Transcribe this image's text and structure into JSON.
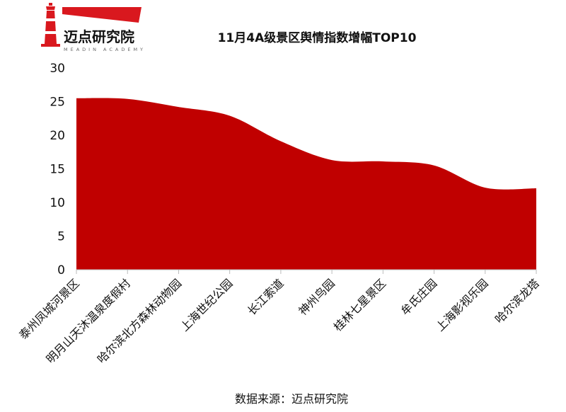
{
  "brand": {
    "name": "迈点研究院",
    "tagline": "MEADIN ACADEMY"
  },
  "source_note": "数据来源：迈点研究院",
  "colors": {
    "fill": "#C00000",
    "brand_red": "#D9181E"
  },
  "chart_data": {
    "type": "area",
    "title": "11月4A级景区舆情指数增幅TOP10",
    "xlabel": "",
    "ylabel": "",
    "ylim": [
      0,
      30
    ],
    "yticks": [
      0,
      5,
      10,
      15,
      20,
      25,
      30
    ],
    "grid": false,
    "categories": [
      "泰州凤城河景区",
      "明月山天沐温泉度假村",
      "哈尔滨北方森林动物园",
      "上海世纪公园",
      "长江索道",
      "神州鸟园",
      "桂林七星景区",
      "牟氏庄园",
      "上海影视乐园",
      "哈尔滨龙塔"
    ],
    "values": [
      25.5,
      25.4,
      24.2,
      22.9,
      19.1,
      16.3,
      16.1,
      15.5,
      12.2,
      12.1
    ]
  }
}
